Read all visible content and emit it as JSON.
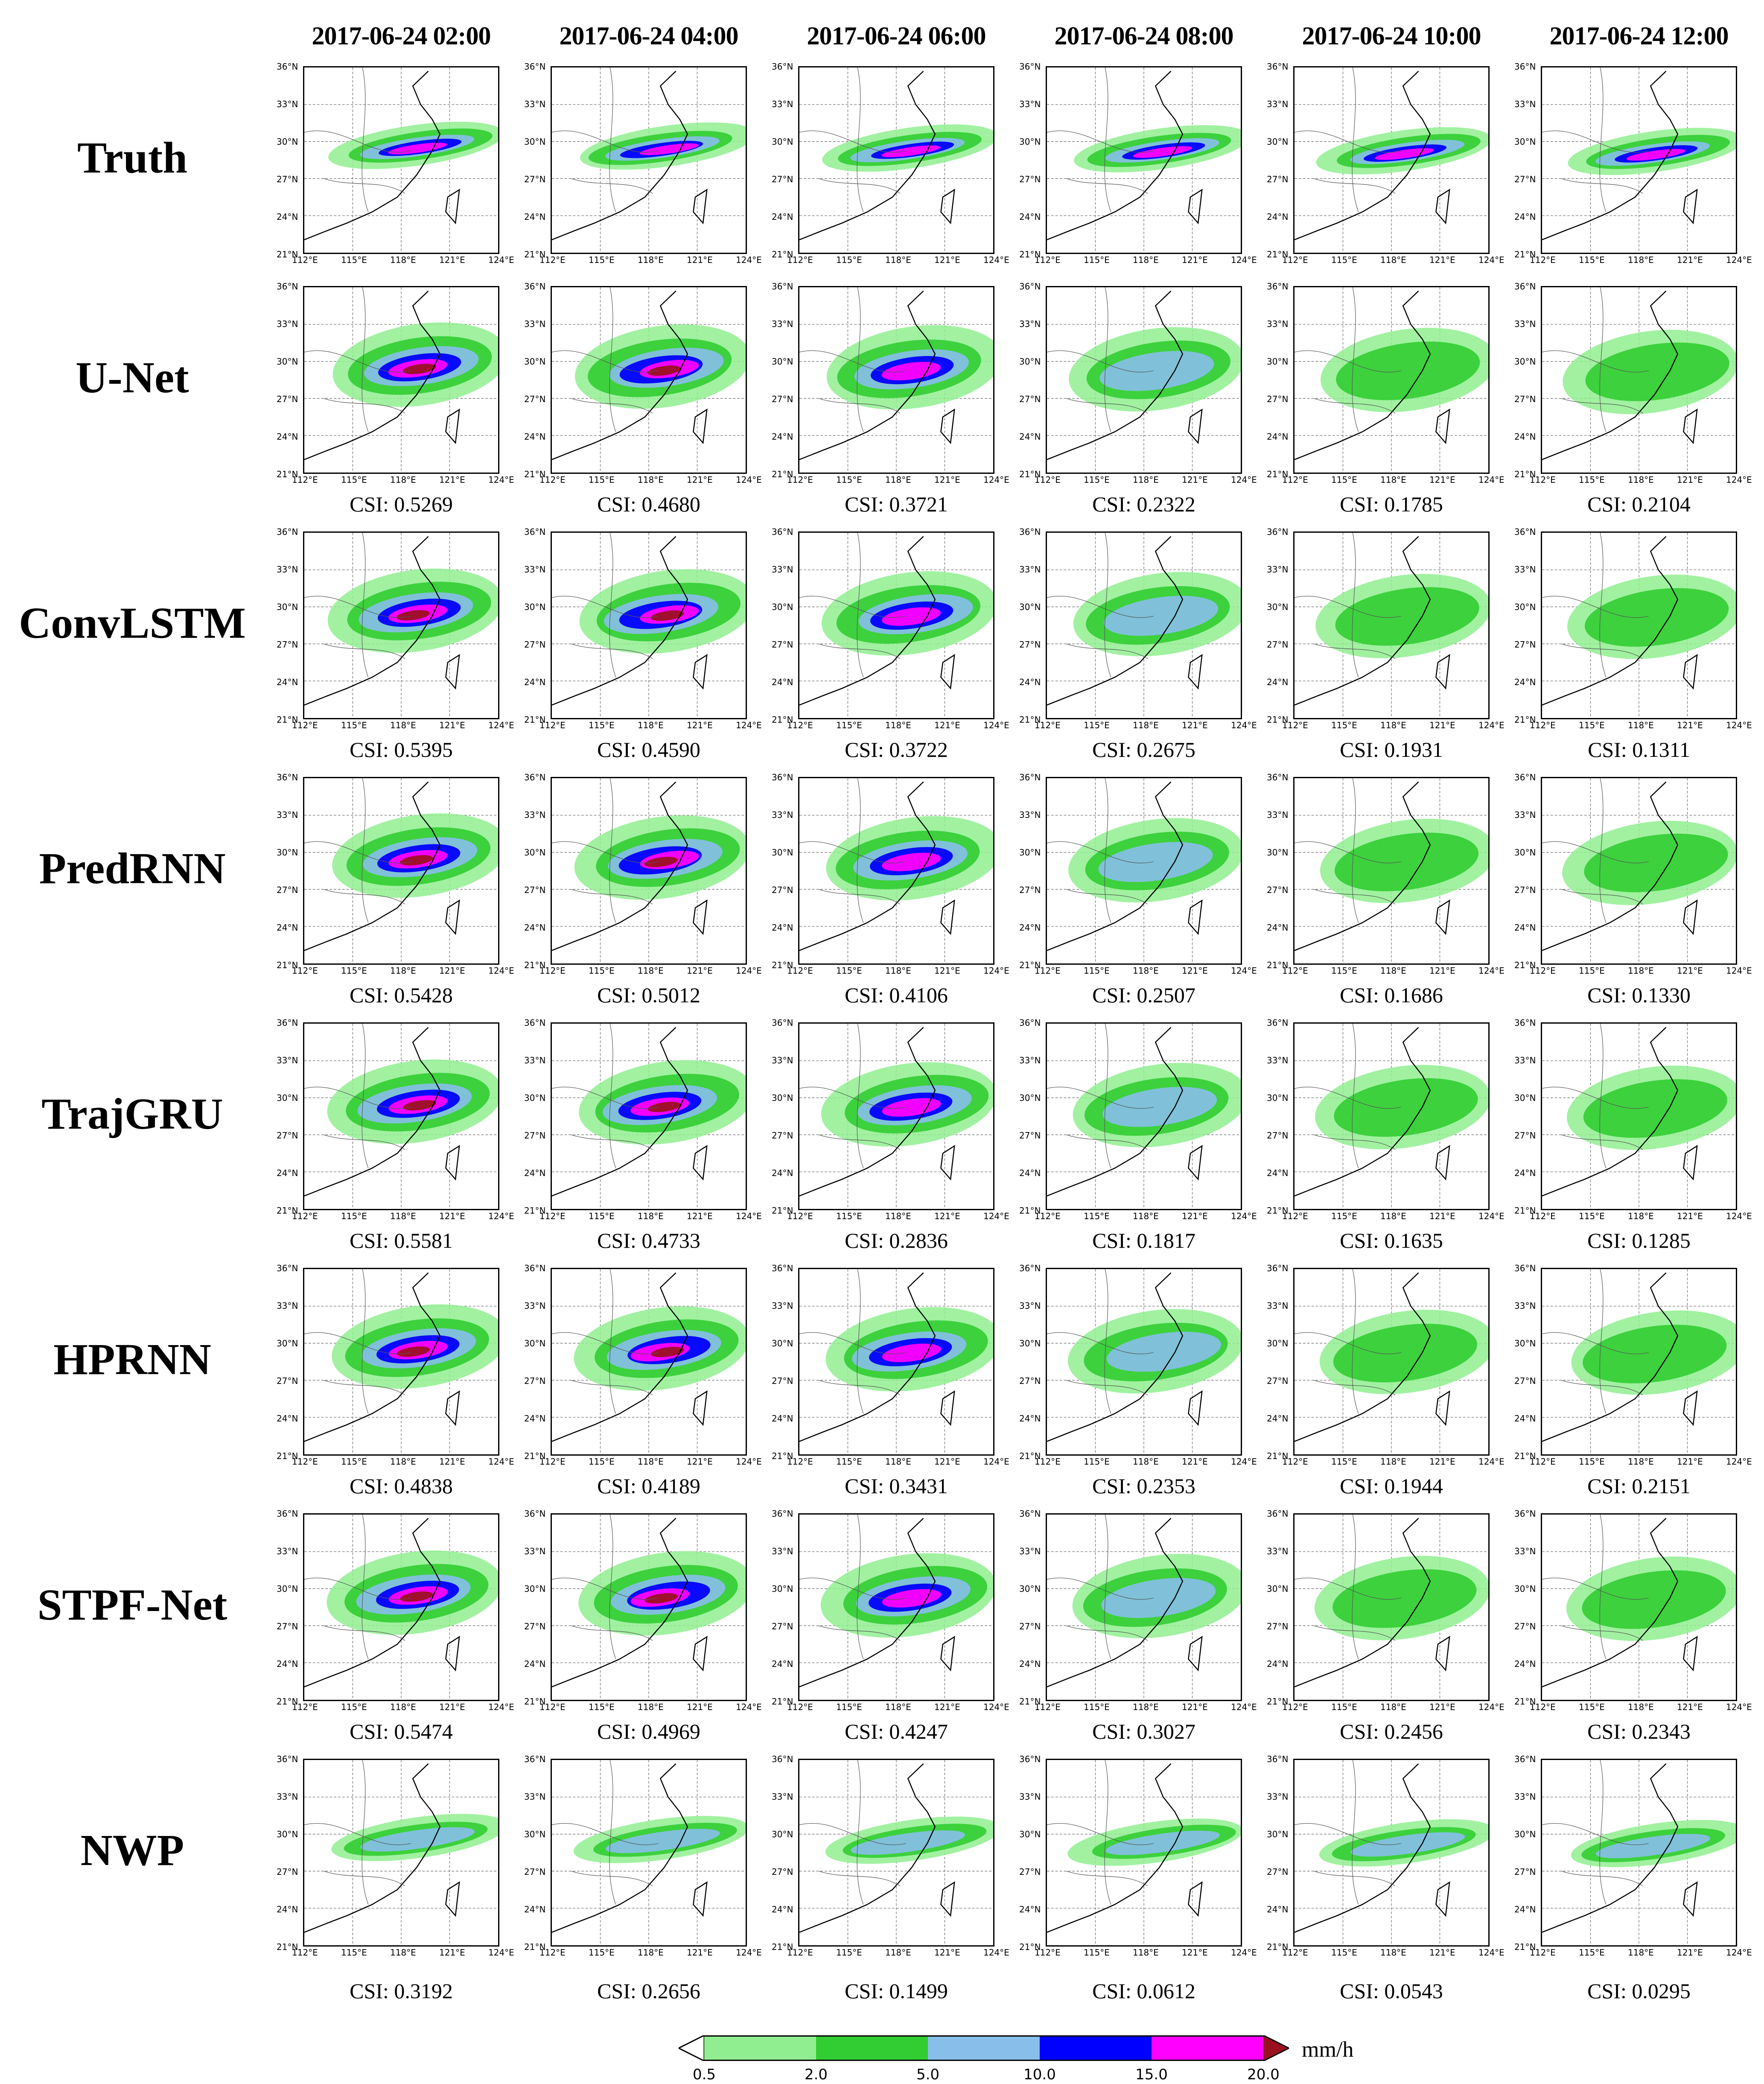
{
  "figure": {
    "columns": [
      "2017-06-24 02:00",
      "2017-06-24 04:00",
      "2017-06-24 06:00",
      "2017-06-24 08:00",
      "2017-06-24 10:00",
      "2017-06-24 12:00"
    ],
    "rows": [
      {
        "label": "Truth",
        "csi": [
          null,
          null,
          null,
          null,
          null,
          null
        ]
      },
      {
        "label": "U-Net",
        "csi": [
          "CSI: 0.5269",
          "CSI: 0.4680",
          "CSI: 0.3721",
          "CSI: 0.2322",
          "CSI: 0.1785",
          "CSI: 0.2104"
        ]
      },
      {
        "label": "ConvLSTM",
        "csi": [
          "CSI: 0.5395",
          "CSI: 0.4590",
          "CSI: 0.3722",
          "CSI: 0.2675",
          "CSI: 0.1931",
          "CSI: 0.1311"
        ]
      },
      {
        "label": "PredRNN",
        "csi": [
          "CSI: 0.5428",
          "CSI: 0.5012",
          "CSI: 0.4106",
          "CSI: 0.2507",
          "CSI: 0.1686",
          "CSI: 0.1330"
        ]
      },
      {
        "label": "TrajGRU",
        "csi": [
          "CSI: 0.5581",
          "CSI: 0.4733",
          "CSI: 0.2836",
          "CSI: 0.1817",
          "CSI: 0.1635",
          "CSI: 0.1285"
        ]
      },
      {
        "label": "HPRNN",
        "csi": [
          "CSI: 0.4838",
          "CSI: 0.4189",
          "CSI: 0.3431",
          "CSI: 0.2353",
          "CSI: 0.1944",
          "CSI: 0.2151"
        ]
      },
      {
        "label": "STPF-Net",
        "csi": [
          "CSI: 0.5474",
          "CSI: 0.4969",
          "CSI: 0.4247",
          "CSI: 0.3027",
          "CSI: 0.2456",
          "CSI: 0.2343"
        ]
      },
      {
        "label": "NWP",
        "csi": [
          "CSI: 0.3192",
          "CSI: 0.2656",
          "CSI: 0.1499",
          "CSI: 0.0612",
          "CSI: 0.0543",
          "CSI: 0.0295"
        ]
      }
    ],
    "map_axes": {
      "lat_labels": [
        "36°N",
        "33°N",
        "30°N",
        "27°N",
        "24°N",
        "21°N"
      ],
      "lon_labels": [
        "112°E",
        "115°E",
        "118°E",
        "121°E",
        "124°E"
      ]
    }
  },
  "colorbar": {
    "ticks": [
      "0.5",
      "2.0",
      "5.0",
      "10.0",
      "15.0",
      "20.0"
    ],
    "unit": "mm/h",
    "colors": [
      "#90ee90",
      "#32cd32",
      "#87bfea",
      "#0000ff",
      "#ff00ff",
      "#9b1020"
    ]
  }
}
